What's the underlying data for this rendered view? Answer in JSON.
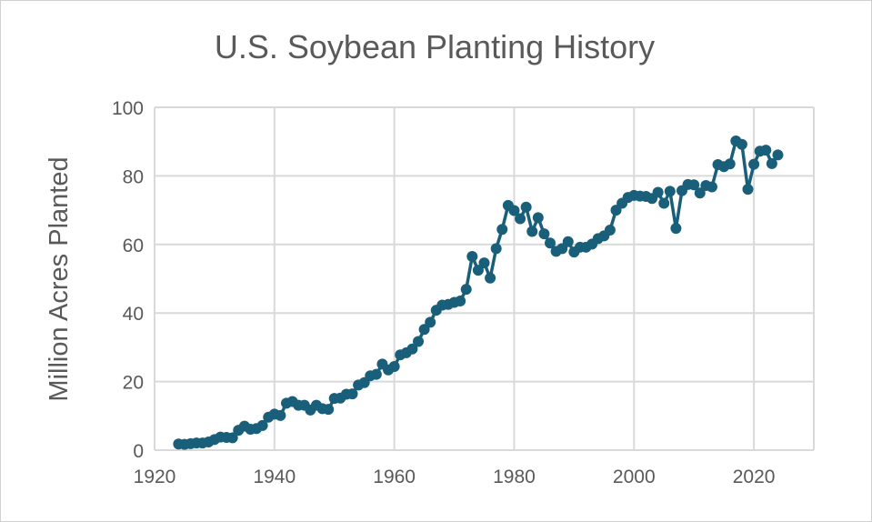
{
  "chart_data": {
    "type": "line",
    "title": "U.S. Soybean Planting History",
    "xlabel": "",
    "ylabel": "Million Acres Planted",
    "xlim": [
      1920,
      2030
    ],
    "ylim": [
      0,
      100
    ],
    "xticks": [
      1920,
      1940,
      1960,
      1980,
      2000,
      2020
    ],
    "yticks": [
      0,
      20,
      40,
      60,
      80,
      100
    ],
    "grid": true,
    "markers": true,
    "color": "#1a5f7a",
    "x": [
      1924,
      1925,
      1926,
      1927,
      1928,
      1929,
      1930,
      1931,
      1932,
      1933,
      1934,
      1935,
      1936,
      1937,
      1938,
      1939,
      1940,
      1941,
      1942,
      1943,
      1944,
      1945,
      1946,
      1947,
      1948,
      1949,
      1950,
      1951,
      1952,
      1953,
      1954,
      1955,
      1956,
      1957,
      1958,
      1959,
      1960,
      1961,
      1962,
      1963,
      1964,
      1965,
      1966,
      1967,
      1968,
      1969,
      1970,
      1971,
      1972,
      1973,
      1974,
      1975,
      1976,
      1977,
      1978,
      1979,
      1980,
      1981,
      1982,
      1983,
      1984,
      1985,
      1986,
      1987,
      1988,
      1989,
      1990,
      1991,
      1992,
      1993,
      1994,
      1995,
      1996,
      1997,
      1998,
      1999,
      2000,
      2001,
      2002,
      2003,
      2004,
      2005,
      2006,
      2007,
      2008,
      2009,
      2010,
      2011,
      2012,
      2013,
      2014,
      2015,
      2016,
      2017,
      2018,
      2019,
      2020,
      2021,
      2022,
      2023,
      2024
    ],
    "y": [
      1.8,
      1.7,
      1.9,
      2.1,
      2.1,
      2.4,
      3.1,
      3.8,
      3.7,
      3.6,
      5.8,
      7.0,
      6.1,
      6.3,
      7.2,
      9.6,
      10.5,
      10.1,
      13.7,
      14.2,
      13.1,
      13.1,
      11.7,
      13.1,
      12.1,
      11.9,
      15.1,
      15.2,
      16.3,
      16.4,
      19.0,
      19.7,
      21.7,
      22.1,
      25.1,
      23.4,
      24.4,
      27.8,
      28.4,
      29.5,
      31.7,
      35.2,
      37.3,
      40.8,
      42.3,
      42.5,
      43.1,
      43.5,
      46.9,
      56.5,
      52.5,
      54.6,
      50.2,
      58.8,
      64.4,
      71.4,
      69.9,
      67.5,
      70.9,
      63.8,
      67.8,
      63.1,
      60.4,
      58.0,
      58.8,
      60.8,
      57.8,
      59.2,
      59.2,
      60.1,
      61.7,
      62.5,
      64.2,
      70.0,
      72.0,
      73.7,
      74.3,
      74.1,
      74.0,
      73.4,
      75.2,
      72.0,
      75.5,
      64.7,
      75.7,
      77.5,
      77.4,
      75.0,
      77.2,
      76.8,
      83.3,
      82.7,
      83.5,
      90.2,
      89.2,
      76.1,
      83.4,
      87.2,
      87.5,
      83.6,
      86.1
    ]
  }
}
